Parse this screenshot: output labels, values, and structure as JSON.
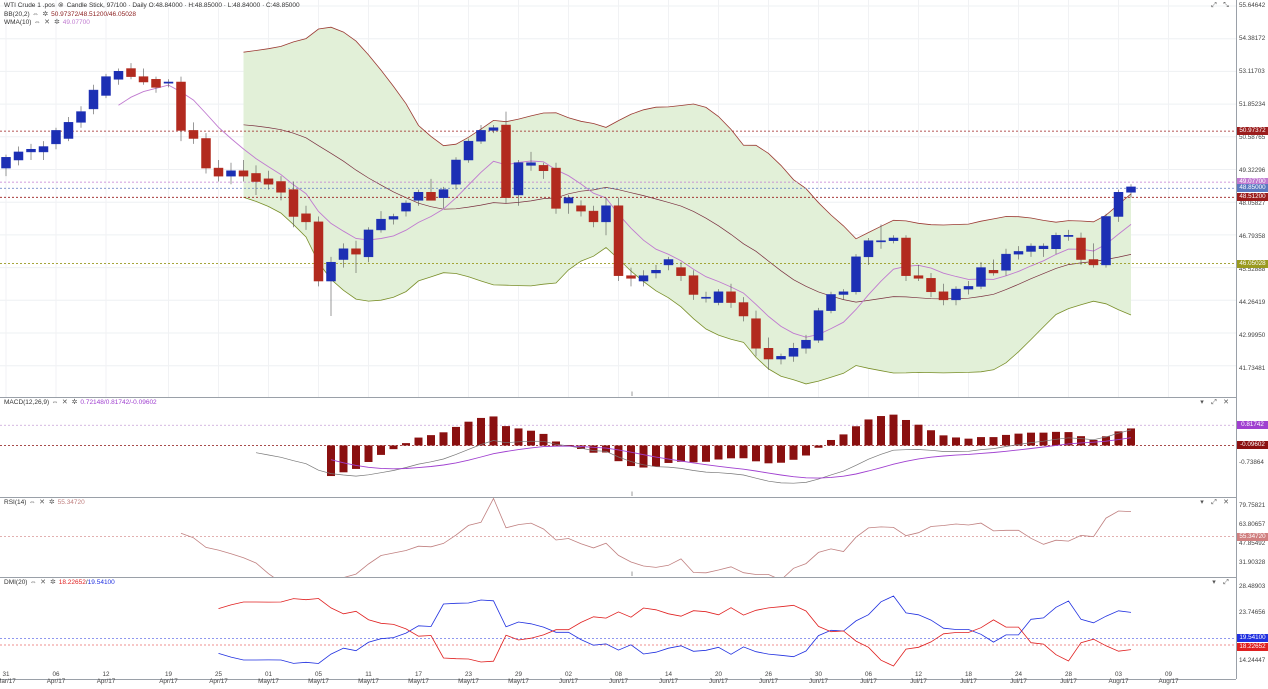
{
  "header": {
    "title": "WTI Crude 1 .pos",
    "chart_kind": "Candle Stick, 97/100 · Daily",
    "ohlc": "O:48.84000 · H:48.85000 · L:48.84000 · C:48.85000"
  },
  "indicators": {
    "bb": {
      "name": "BB(20,2)",
      "values": "50.97372/48.51200/46.05028"
    },
    "wma": {
      "name": "WMA(10)",
      "value": "49.07700"
    },
    "macd": {
      "name": "MACD(12,26,9)",
      "values": "0.72148/0.81742/-0.09602"
    },
    "rsi": {
      "name": "RSI(14)",
      "value": "55.34720"
    },
    "dmi": {
      "name": "DMI(20)",
      "plus": "18.22652",
      "minus": "19.54100"
    }
  },
  "colors": {
    "up": "#1c2fb4",
    "down": "#b22a1f",
    "band_fill": "#e2f0d8",
    "upper_band": "#9b3a33",
    "lower_band": "#7a8f2a",
    "wma": "#c07ad0",
    "mid": "#7a3040",
    "macd_hist": "#8a1010",
    "macd_signal": "#a040d0",
    "rsi": "#c08080",
    "dmi_plus": "#e02020",
    "dmi_minus": "#2030e0"
  },
  "price_axis": [
    "55.64642",
    "54.38172",
    "53.11703",
    "51.85234",
    "50.58765",
    "49.32296",
    "48.05827",
    "46.79358",
    "45.52888",
    "44.26419",
    "42.99950",
    "41.73481"
  ],
  "price_tags": [
    {
      "text": "50.97372",
      "price": 50.97372,
      "bg": "#9b1c1c"
    },
    {
      "text": "49.07700",
      "price": 49.077,
      "bg": "#c07ad0"
    },
    {
      "text": "48.85000",
      "price": 48.85,
      "bg": "#5a78c0"
    },
    {
      "text": "48.51200",
      "price": 48.512,
      "bg": "#9b1c1c"
    },
    {
      "text": "46.05028",
      "price": 46.05028,
      "bg": "#9a9a20"
    }
  ],
  "macd_axis": [
    "-0.73864"
  ],
  "macd_tags": [
    {
      "text": "0.81742",
      "bg": "#a040d0"
    },
    {
      "text": "-0.09602",
      "bg": "#8a1010"
    }
  ],
  "rsi_axis": [
    "79.75821",
    "63.80657",
    "47.85492",
    "31.90328"
  ],
  "rsi_tags": [
    {
      "text": "55.34720",
      "bg": "#d08080"
    }
  ],
  "dmi_axis": [
    "28.48903",
    "23.74656",
    "14.24447"
  ],
  "dmi_tags": [
    {
      "text": "19.54100",
      "bg": "#2030e0"
    },
    {
      "text": "18.22652",
      "bg": "#e02020"
    }
  ],
  "x_axis": [
    {
      "d": "31",
      "m": "Mar/17",
      "i": 0
    },
    {
      "d": "06",
      "m": "Apr/17",
      "i": 4
    },
    {
      "d": "12",
      "m": "Apr/17",
      "i": 8
    },
    {
      "d": "19",
      "m": "Apr/17",
      "i": 13
    },
    {
      "d": "25",
      "m": "Apr/17",
      "i": 17
    },
    {
      "d": "01",
      "m": "May/17",
      "i": 21
    },
    {
      "d": "05",
      "m": "May/17",
      "i": 25
    },
    {
      "d": "11",
      "m": "May/17",
      "i": 29
    },
    {
      "d": "17",
      "m": "May/17",
      "i": 33
    },
    {
      "d": "23",
      "m": "May/17",
      "i": 37
    },
    {
      "d": "29",
      "m": "May/17",
      "i": 41
    },
    {
      "d": "02",
      "m": "Jun/17",
      "i": 45
    },
    {
      "d": "08",
      "m": "Jun/17",
      "i": 49
    },
    {
      "d": "14",
      "m": "Jun/17",
      "i": 53
    },
    {
      "d": "20",
      "m": "Jun/17",
      "i": 57
    },
    {
      "d": "26",
      "m": "Jun/17",
      "i": 61
    },
    {
      "d": "30",
      "m": "Jun/17",
      "i": 65
    },
    {
      "d": "06",
      "m": "Jul/17",
      "i": 69
    },
    {
      "d": "12",
      "m": "Jul/17",
      "i": 73
    },
    {
      "d": "18",
      "m": "Jul/17",
      "i": 77
    },
    {
      "d": "24",
      "m": "Jul/17",
      "i": 81
    },
    {
      "d": "28",
      "m": "Jul/17",
      "i": 85
    },
    {
      "d": "03",
      "m": "Aug/17",
      "i": 89
    },
    {
      "d": "09",
      "m": "Aug/17",
      "i": 93
    }
  ],
  "chart_data": {
    "type": "candlestick",
    "price_range": [
      41.2,
      55.7
    ],
    "candles": [
      [
        49.6,
        50.1,
        49.3,
        50.0
      ],
      [
        49.9,
        50.4,
        49.7,
        50.2
      ],
      [
        50.2,
        50.5,
        49.9,
        50.3
      ],
      [
        50.2,
        50.6,
        49.9,
        50.4
      ],
      [
        50.5,
        51.1,
        50.3,
        51.0
      ],
      [
        50.7,
        51.5,
        50.6,
        51.3
      ],
      [
        51.3,
        51.9,
        51.1,
        51.7
      ],
      [
        51.8,
        52.7,
        51.6,
        52.5
      ],
      [
        52.3,
        53.1,
        52.2,
        53.0
      ],
      [
        52.9,
        53.3,
        52.7,
        53.2
      ],
      [
        53.3,
        53.5,
        52.9,
        53.0
      ],
      [
        53.0,
        53.3,
        52.7,
        52.8
      ],
      [
        52.9,
        53.0,
        52.4,
        52.6
      ],
      [
        52.8,
        52.9,
        52.6,
        52.8
      ],
      [
        52.8,
        53.0,
        50.6,
        51.0
      ],
      [
        51.0,
        51.3,
        50.5,
        50.7
      ],
      [
        50.7,
        50.9,
        49.4,
        49.6
      ],
      [
        49.6,
        49.9,
        49.1,
        49.3
      ],
      [
        49.3,
        49.8,
        49.0,
        49.5
      ],
      [
        49.5,
        49.9,
        49.1,
        49.3
      ],
      [
        49.4,
        49.7,
        48.6,
        49.1
      ],
      [
        49.2,
        49.5,
        48.8,
        49.0
      ],
      [
        49.1,
        49.3,
        48.4,
        48.7
      ],
      [
        48.8,
        49.1,
        47.4,
        47.8
      ],
      [
        47.9,
        48.2,
        47.3,
        47.6
      ],
      [
        47.6,
        47.8,
        45.2,
        45.4
      ],
      [
        45.4,
        46.3,
        44.1,
        46.1
      ],
      [
        46.2,
        46.8,
        45.9,
        46.6
      ],
      [
        46.6,
        46.9,
        45.7,
        46.4
      ],
      [
        46.3,
        47.4,
        46.1,
        47.3
      ],
      [
        47.3,
        48.0,
        47.2,
        47.7
      ],
      [
        47.7,
        47.9,
        47.5,
        47.8
      ],
      [
        48.0,
        48.4,
        47.8,
        48.3
      ],
      [
        48.4,
        48.8,
        48.2,
        48.7
      ],
      [
        48.7,
        49.2,
        48.4,
        48.4
      ],
      [
        48.5,
        48.9,
        48.1,
        48.8
      ],
      [
        49.0,
        50.0,
        48.8,
        49.9
      ],
      [
        49.9,
        50.7,
        49.8,
        50.6
      ],
      [
        50.6,
        51.2,
        50.5,
        51.0
      ],
      [
        51.0,
        51.2,
        50.9,
        51.1
      ],
      [
        51.2,
        51.7,
        48.3,
        48.5
      ],
      [
        48.6,
        49.9,
        48.2,
        49.8
      ],
      [
        49.7,
        50.2,
        49.5,
        49.8
      ],
      [
        49.7,
        49.8,
        49.2,
        49.5
      ],
      [
        49.6,
        49.8,
        47.9,
        48.1
      ],
      [
        48.3,
        48.6,
        47.9,
        48.5
      ],
      [
        48.2,
        48.4,
        47.8,
        48.0
      ],
      [
        48.0,
        48.2,
        47.4,
        47.6
      ],
      [
        47.6,
        48.5,
        47.1,
        48.2
      ],
      [
        48.2,
        48.5,
        45.4,
        45.6
      ],
      [
        45.6,
        45.9,
        45.2,
        45.5
      ],
      [
        45.4,
        45.8,
        45.2,
        45.6
      ],
      [
        45.7,
        46.0,
        45.5,
        45.8
      ],
      [
        46.0,
        46.3,
        45.8,
        46.2
      ],
      [
        45.9,
        46.1,
        45.4,
        45.6
      ],
      [
        45.6,
        45.8,
        44.7,
        44.9
      ],
      [
        44.8,
        45.0,
        44.6,
        44.8
      ],
      [
        44.6,
        45.1,
        44.5,
        45.0
      ],
      [
        45.0,
        45.3,
        44.4,
        44.6
      ],
      [
        44.6,
        44.8,
        43.9,
        44.1
      ],
      [
        44.0,
        44.3,
        42.6,
        42.9
      ],
      [
        42.9,
        43.3,
        42.1,
        42.5
      ],
      [
        42.5,
        42.7,
        42.3,
        42.6
      ],
      [
        42.6,
        43.1,
        42.4,
        42.9
      ],
      [
        42.9,
        43.4,
        42.7,
        43.2
      ],
      [
        43.2,
        44.4,
        43.1,
        44.3
      ],
      [
        44.3,
        45.0,
        44.2,
        44.9
      ],
      [
        44.9,
        45.1,
        44.7,
        45.0
      ],
      [
        45.0,
        46.4,
        44.9,
        46.3
      ],
      [
        46.3,
        47.0,
        46.0,
        46.9
      ],
      [
        46.9,
        47.5,
        46.6,
        46.9
      ],
      [
        46.9,
        47.1,
        46.8,
        47.0
      ],
      [
        47.0,
        47.1,
        45.4,
        45.6
      ],
      [
        45.6,
        46.0,
        45.4,
        45.5
      ],
      [
        45.5,
        45.7,
        44.8,
        45.0
      ],
      [
        45.0,
        45.3,
        44.5,
        44.7
      ],
      [
        44.7,
        45.2,
        44.5,
        45.1
      ],
      [
        45.1,
        45.4,
        44.9,
        45.2
      ],
      [
        45.2,
        46.1,
        45.1,
        45.9
      ],
      [
        45.8,
        46.2,
        45.6,
        45.7
      ],
      [
        45.8,
        46.6,
        45.6,
        46.4
      ],
      [
        46.4,
        46.7,
        46.2,
        46.5
      ],
      [
        46.5,
        46.8,
        46.3,
        46.7
      ],
      [
        46.6,
        46.8,
        46.3,
        46.7
      ],
      [
        46.6,
        47.2,
        46.4,
        47.1
      ],
      [
        47.1,
        47.3,
        46.9,
        47.1
      ],
      [
        47.0,
        47.2,
        46.0,
        46.2
      ],
      [
        46.2,
        46.8,
        45.9,
        46.0
      ],
      [
        46.0,
        47.9,
        45.9,
        47.8
      ],
      [
        47.8,
        48.8,
        47.6,
        48.7
      ],
      [
        48.7,
        49.0,
        48.5,
        48.9
      ]
    ]
  }
}
